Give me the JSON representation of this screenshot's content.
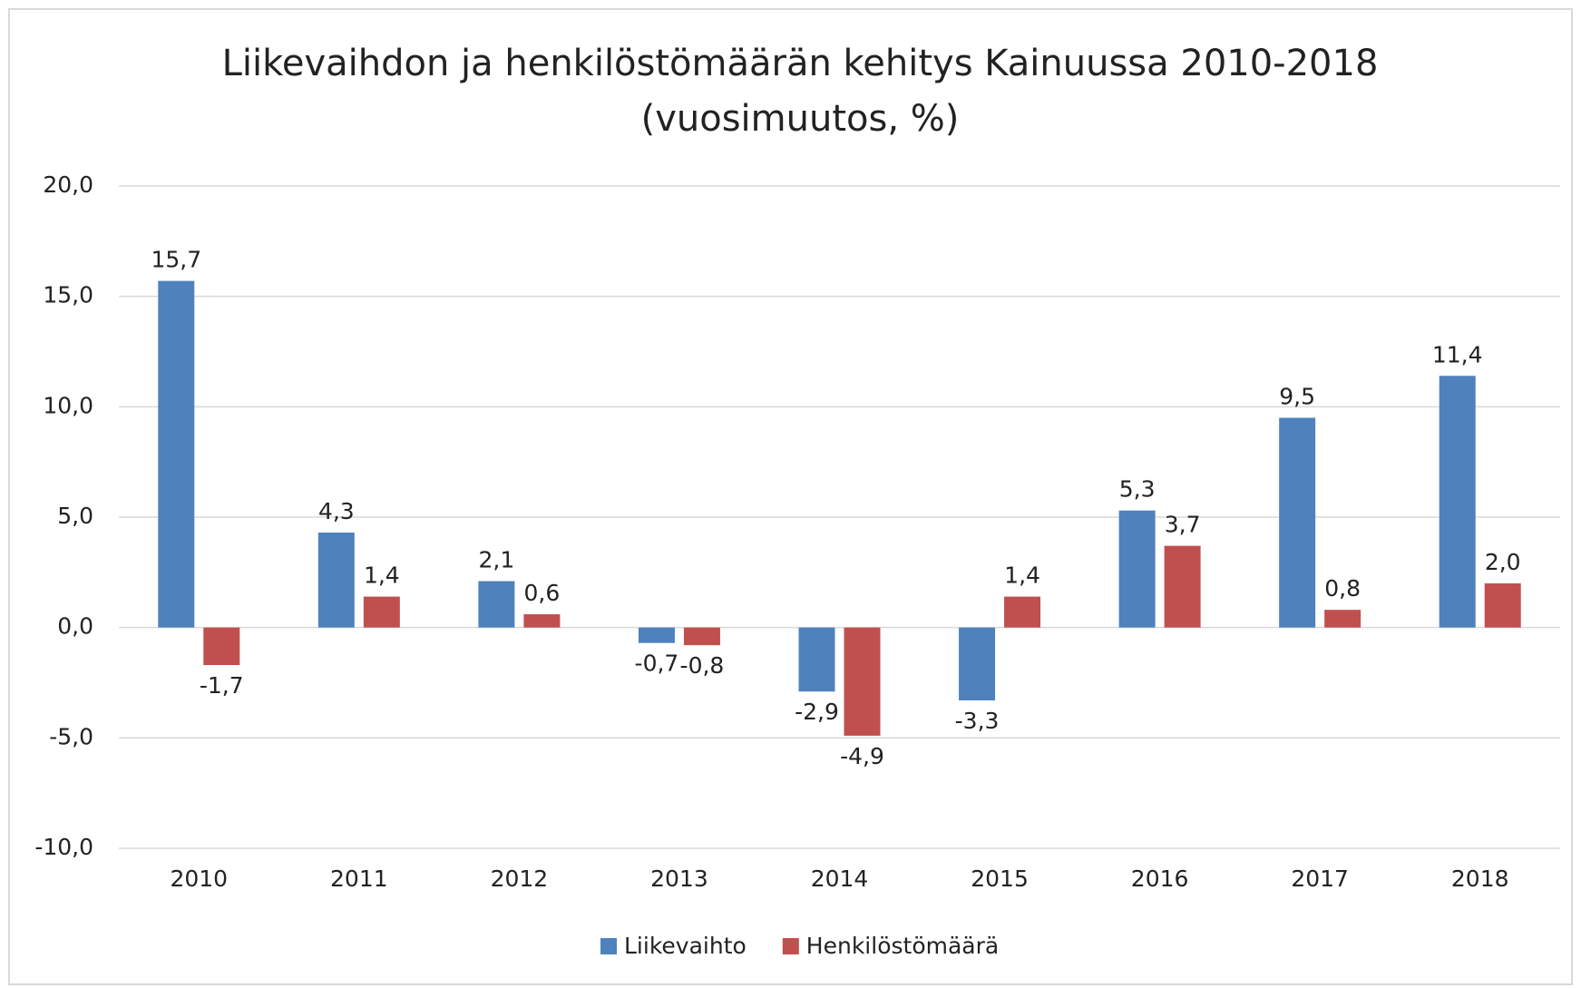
{
  "chart_data": {
    "type": "bar",
    "title": "Liikevaihdon ja henkilöstömäärän kehitys Kainuussa 2010-2018",
    "subtitle": "(vuosimuutos, %)",
    "categories": [
      "2010",
      "2011",
      "2012",
      "2013",
      "2014",
      "2015",
      "2016",
      "2017",
      "2018"
    ],
    "series": [
      {
        "name": "Liikevaihto",
        "color": "#4f81bd",
        "values": [
          15.7,
          4.3,
          2.1,
          -0.7,
          -2.9,
          -3.3,
          5.3,
          9.5,
          11.4
        ],
        "value_labels": [
          "15,7",
          "4,3",
          "2,1",
          "-0,7",
          "-2,9",
          "-3,3",
          "5,3",
          "9,5",
          "11,4"
        ]
      },
      {
        "name": "Henkilöstömäärä",
        "color": "#c0504d",
        "values": [
          -1.7,
          1.4,
          0.6,
          -0.8,
          -4.9,
          1.4,
          3.7,
          0.8,
          2.0
        ],
        "value_labels": [
          "-1,7",
          "1,4",
          "0,6",
          "-0,8",
          "-4,9",
          "1,4",
          "3,7",
          "0,8",
          "2,0"
        ]
      }
    ],
    "ylim": [
      -10,
      20
    ],
    "yticks": [
      {
        "value": -10,
        "label": "-10,0"
      },
      {
        "value": -5,
        "label": "-5,0"
      },
      {
        "value": 0,
        "label": "0,0"
      },
      {
        "value": 5,
        "label": "5,0"
      },
      {
        "value": 10,
        "label": "10,0"
      },
      {
        "value": 15,
        "label": "15,0"
      },
      {
        "value": 20,
        "label": "20,0"
      }
    ],
    "grid": true,
    "legend": "bottom"
  }
}
